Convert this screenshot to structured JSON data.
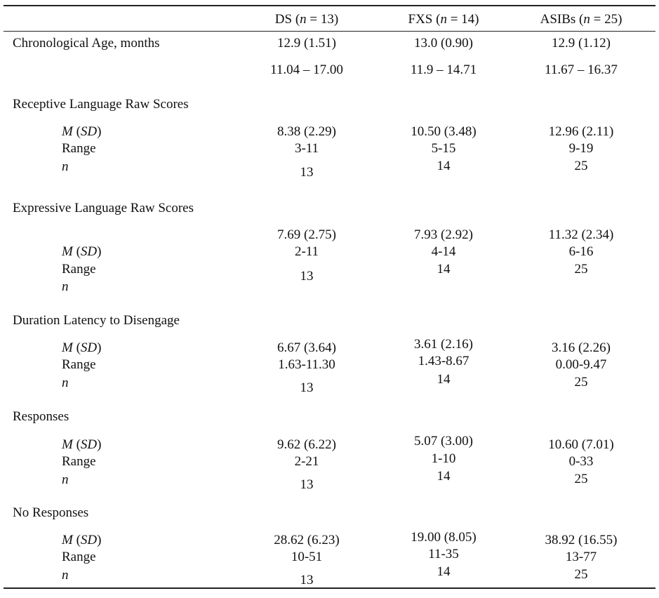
{
  "header": {
    "columns": [
      [
        "DS (",
        "n",
        " = 13)"
      ],
      [
        "FXS (",
        "n",
        " = 14)"
      ],
      [
        "ASIBs (",
        "n",
        " = 25)"
      ]
    ]
  },
  "sections": [
    {
      "title": "Chronological Age, months",
      "mean_sd": [
        "12.9 (1.51)",
        "13.0 (0.90)",
        "12.9 (1.12)"
      ],
      "range": [
        "11.04 – 17.00",
        "11.9 – 14.71",
        "11.67 – 16.37"
      ]
    },
    {
      "title": "Receptive Language Raw Scores",
      "labels": [
        [
          "M",
          " (",
          "SD",
          ")"
        ],
        "Range",
        "n"
      ],
      "mean_sd": [
        "8.38 (2.29)",
        "10.50 (3.48)",
        "12.96 (2.11)"
      ],
      "range": [
        "3-11",
        "5-15",
        "9-19"
      ],
      "n": [
        "13",
        "14",
        "25"
      ]
    },
    {
      "title": "Expressive Language Raw Scores",
      "labels": [
        [
          "M",
          " (",
          "SD",
          ")"
        ],
        "Range",
        "n"
      ],
      "mean_sd": [
        "7.69 (2.75)",
        "7.93 (2.92)",
        "11.32 (2.34)"
      ],
      "range": [
        "2-11",
        "4-14",
        "6-16"
      ],
      "n": [
        "13",
        "14",
        "25"
      ]
    },
    {
      "title": "Duration Latency to Disengage",
      "labels": [
        [
          "M",
          " (",
          "SD",
          ")"
        ],
        "Range",
        "n"
      ],
      "mean_sd": [
        "6.67 (3.64)",
        "3.61 (2.16)",
        "3.16 (2.26)"
      ],
      "range": [
        "1.63-11.30",
        "1.43-8.67",
        "0.00-9.47"
      ],
      "n": [
        "13",
        "14",
        "25"
      ]
    },
    {
      "title": "Responses",
      "labels": [
        [
          "M",
          " (",
          "SD",
          ")"
        ],
        "Range",
        "n"
      ],
      "mean_sd": [
        "9.62 (6.22)",
        "5.07 (3.00)",
        "10.60 (7.01)"
      ],
      "range": [
        "2-21",
        "1-10",
        "0-33"
      ],
      "n": [
        "13",
        "14",
        "25"
      ]
    },
    {
      "title": "No Responses",
      "labels": [
        [
          "M",
          " (",
          "SD",
          ")"
        ],
        "Range",
        "n"
      ],
      "mean_sd": [
        "28.62 (6.23)",
        "19.00 (8.05)",
        "38.92 (16.55)"
      ],
      "range": [
        "10-51",
        "11-35",
        "13-77"
      ],
      "n": [
        "13",
        "14",
        "25"
      ]
    }
  ]
}
